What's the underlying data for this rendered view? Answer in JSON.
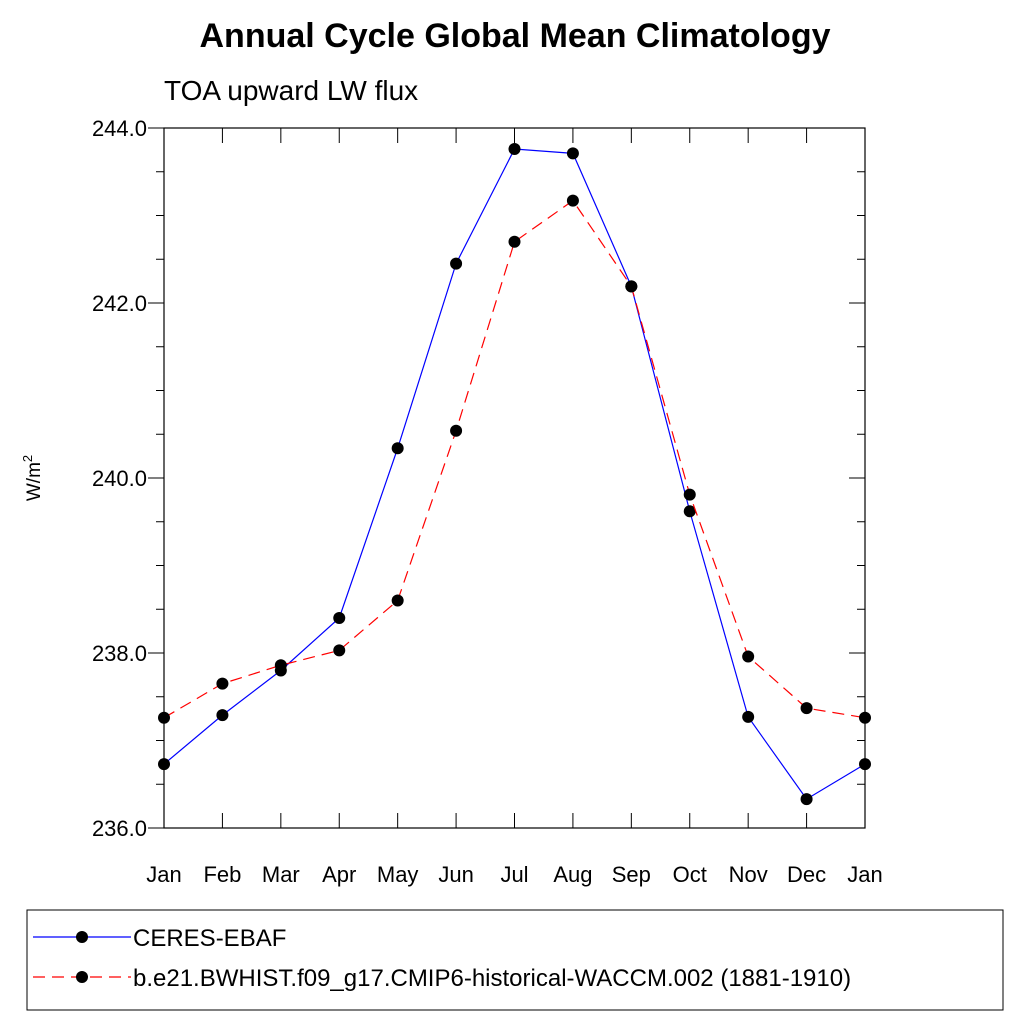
{
  "chart_data": {
    "type": "line",
    "title": "Annual Cycle Global Mean Climatology",
    "subtitle": "TOA upward LW flux",
    "ylabel": "W/m",
    "ylabel_superscript": "2",
    "xlabel": "",
    "categories": [
      "Jan",
      "Feb",
      "Mar",
      "Apr",
      "May",
      "Jun",
      "Jul",
      "Aug",
      "Sep",
      "Oct",
      "Nov",
      "Dec",
      "Jan"
    ],
    "ylim": [
      236.0,
      244.0
    ],
    "yticks": [
      236.0,
      238.0,
      240.0,
      242.0,
      244.0
    ],
    "ytick_labels": [
      "236.0",
      "238.0",
      "240.0",
      "242.0",
      "244.0"
    ],
    "grid": false,
    "legend_position": "bottom",
    "series": [
      {
        "name": "CERES-EBAF",
        "color": "#0000ff",
        "style": "solid",
        "marker": "circle",
        "values": [
          236.73,
          237.29,
          237.8,
          238.4,
          240.34,
          242.45,
          243.76,
          243.71,
          242.19,
          239.62,
          237.27,
          236.33,
          236.73
        ]
      },
      {
        "name": "b.e21.BWHIST.f09_g17.CMIP6-historical-WACCM.002 (1881-1910)",
        "color": "#ff0000",
        "style": "dashed",
        "marker": "circle",
        "values": [
          237.26,
          237.65,
          237.86,
          238.03,
          238.6,
          240.54,
          242.7,
          243.17,
          242.19,
          239.81,
          237.96,
          237.37,
          237.26
        ]
      }
    ]
  }
}
